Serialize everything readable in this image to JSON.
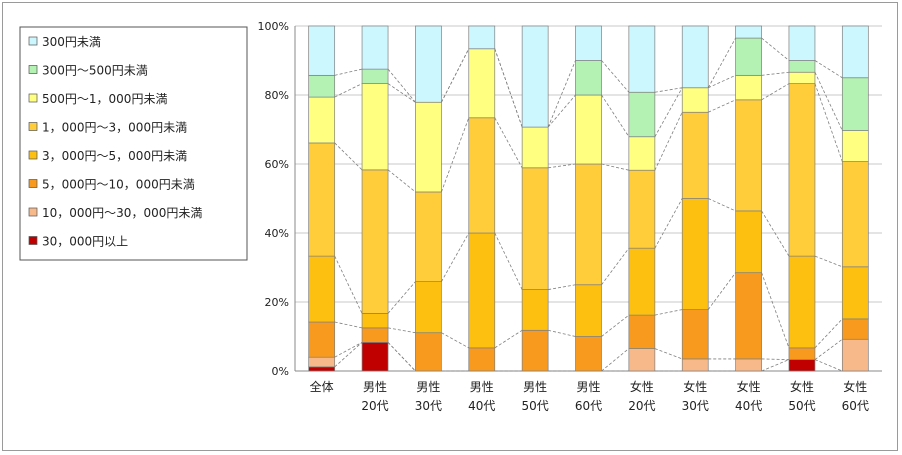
{
  "chart_data": {
    "type": "bar",
    "stacked": "percent",
    "categories": [
      {
        "line1": "全体",
        "line2": ""
      },
      {
        "line1": "男性",
        "line2": "20代"
      },
      {
        "line1": "男性",
        "line2": "30代"
      },
      {
        "line1": "男性",
        "line2": "40代"
      },
      {
        "line1": "男性",
        "line2": "50代"
      },
      {
        "line1": "男性",
        "line2": "60代"
      },
      {
        "line1": "女性",
        "line2": "20代"
      },
      {
        "line1": "女性",
        "line2": "30代"
      },
      {
        "line1": "女性",
        "line2": "40代"
      },
      {
        "line1": "女性",
        "line2": "50代"
      },
      {
        "line1": "女性",
        "line2": "60代"
      }
    ],
    "series": [
      {
        "name": "30，000円以上",
        "color": "#c00000",
        "values": [
          1.2,
          8.3,
          0,
          0,
          0,
          0,
          0,
          0,
          0,
          3.3,
          0
        ]
      },
      {
        "name": "10，000円～30，000円未満",
        "color": "#f8b98a",
        "values": [
          2.8,
          0,
          0,
          0,
          0,
          0,
          6.5,
          3.5,
          3.5,
          0,
          9.2
        ]
      },
      {
        "name": "5，000円～10，000円未満",
        "color": "#f79a1e",
        "values": [
          10.2,
          4.2,
          11.1,
          6.7,
          11.8,
          10.0,
          9.7,
          14.3,
          25.0,
          3.4,
          5.9
        ]
      },
      {
        "name": "3，000円～5，000円未満",
        "color": "#fdc010",
        "values": [
          19.1,
          4.2,
          14.8,
          33.3,
          11.8,
          15.0,
          19.4,
          32.2,
          17.9,
          26.6,
          15.1
        ]
      },
      {
        "name": "1，000円～3，000円未満",
        "color": "#ffcd3a",
        "values": [
          32.8,
          41.6,
          26.0,
          33.4,
          35.3,
          35.0,
          22.6,
          25.0,
          32.2,
          50.0,
          30.5
        ]
      },
      {
        "name": "500円～1，000円未満",
        "color": "#ffff80",
        "values": [
          13.3,
          25.0,
          26.0,
          20.0,
          11.8,
          20.0,
          9.7,
          7.1,
          7.1,
          3.3,
          9.0
        ]
      },
      {
        "name": "300円～500円未満",
        "color": "#b3f2b3",
        "values": [
          6.3,
          4.2,
          0,
          0,
          0,
          10.0,
          12.9,
          0,
          10.8,
          3.4,
          15.3
        ]
      },
      {
        "name": "300円未満",
        "color": "#ccf7ff",
        "values": [
          14.3,
          12.5,
          22.1,
          6.6,
          29.3,
          10.0,
          19.2,
          17.9,
          3.5,
          10.0,
          15.0
        ]
      }
    ],
    "legend_order": [
      "300円未満",
      "300円～500円未満",
      "500円～1，000円未満",
      "1，000円～3，000円未満",
      "3，000円～5，000円未満",
      "5，000円～10，000円未満",
      "10，000円～30，000円未満",
      "30，000円以上"
    ],
    "yticks": [
      "0%",
      "20%",
      "40%",
      "60%",
      "80%",
      "100%"
    ],
    "ylim": [
      0,
      100
    ],
    "legend_position": "left",
    "series_lines": true
  }
}
